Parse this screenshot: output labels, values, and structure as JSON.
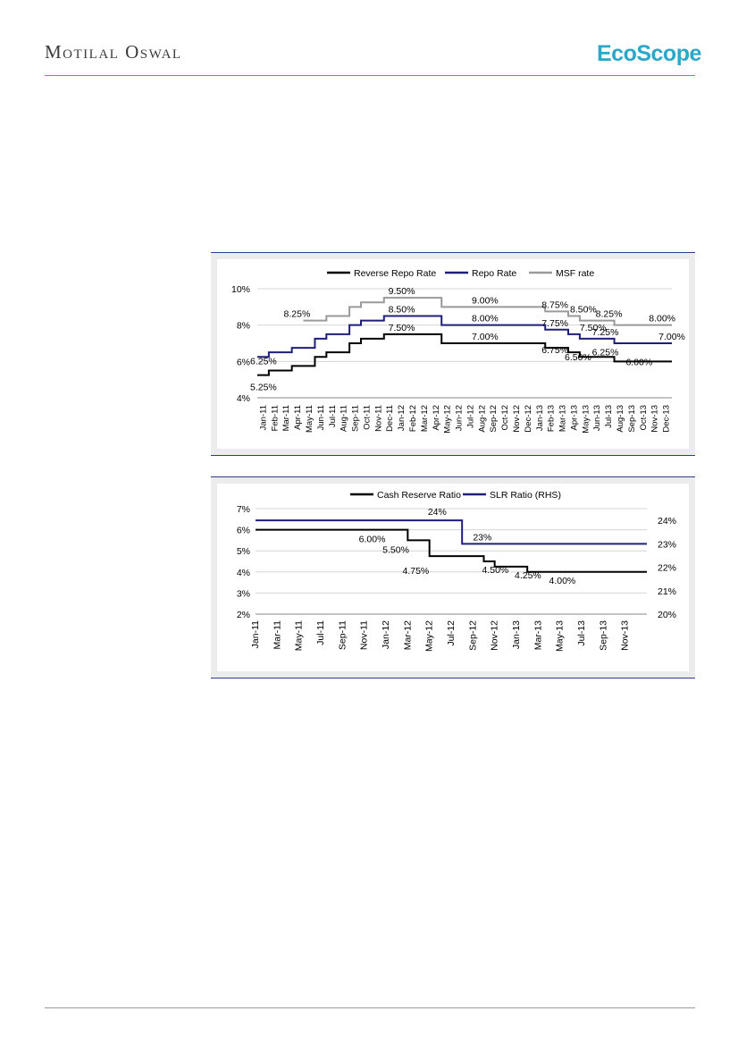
{
  "header": {
    "brand": "Motilal Oswal",
    "logo_text": "EcoScope",
    "accent_color": "#2aa7c9"
  },
  "chart_data": [
    {
      "type": "line",
      "step": true,
      "legend_position": "top",
      "grid": true,
      "ylim": [
        4,
        10
      ],
      "yticks": [
        "4%",
        "6%",
        "8%",
        "10%"
      ],
      "x": [
        "Jan-11",
        "Feb-11",
        "Mar-11",
        "Apr-11",
        "May-11",
        "Jun-11",
        "Jul-11",
        "Aug-11",
        "Sep-11",
        "Oct-11",
        "Nov-11",
        "Dec-11",
        "Jan-12",
        "Feb-12",
        "Mar-12",
        "Apr-12",
        "May-12",
        "Jun-12",
        "Jul-12",
        "Aug-12",
        "Sep-12",
        "Oct-12",
        "Nov-12",
        "Dec-12",
        "Jan-13",
        "Feb-13",
        "Mar-13",
        "Apr-13",
        "May-13",
        "Jun-13",
        "Jul-13",
        "Aug-13",
        "Sep-13",
        "Oct-13",
        "Nov-13",
        "Dec-13"
      ],
      "series": [
        {
          "name": "Reverse Repo Rate",
          "color": "#000000",
          "values": [
            5.25,
            5.5,
            5.5,
            5.75,
            5.75,
            6.25,
            6.5,
            6.5,
            7.0,
            7.25,
            7.25,
            7.5,
            7.5,
            7.5,
            7.5,
            7.5,
            7.0,
            7.0,
            7.0,
            7.0,
            7.0,
            7.0,
            7.0,
            7.0,
            7.0,
            6.75,
            6.75,
            6.5,
            6.25,
            6.25,
            6.25,
            6.0,
            6.0,
            6.0,
            6.0,
            6.0
          ]
        },
        {
          "name": "Repo Rate",
          "color": "#1f1f7a",
          "values": [
            6.25,
            6.5,
            6.5,
            6.75,
            6.75,
            7.25,
            7.5,
            7.5,
            8.0,
            8.25,
            8.25,
            8.5,
            8.5,
            8.5,
            8.5,
            8.5,
            8.0,
            8.0,
            8.0,
            8.0,
            8.0,
            8.0,
            8.0,
            8.0,
            8.0,
            7.75,
            7.75,
            7.5,
            7.25,
            7.25,
            7.25,
            7.0,
            7.0,
            7.0,
            7.0,
            7.0
          ]
        },
        {
          "name": "MSF rate",
          "color": "#9a9a9a",
          "values": [
            null,
            null,
            null,
            null,
            8.25,
            8.25,
            8.5,
            8.5,
            9.0,
            9.25,
            9.25,
            9.5,
            9.5,
            9.5,
            9.5,
            9.5,
            9.0,
            9.0,
            9.0,
            9.0,
            9.0,
            9.0,
            9.0,
            9.0,
            9.0,
            8.75,
            8.75,
            8.5,
            8.25,
            8.25,
            8.25,
            8.0,
            8.0,
            8.0,
            8.0,
            8.0
          ]
        }
      ],
      "annotations": [
        {
          "text": "5.25%",
          "x": "Jan-11",
          "value": 5.25
        },
        {
          "text": "6.25%",
          "x": "Jan-11",
          "value": 6.25
        },
        {
          "text": "8.25%",
          "x": "May-11",
          "value": 8.25
        },
        {
          "text": "9.50%",
          "x": "Jan-12",
          "value": 9.5
        },
        {
          "text": "8.50%",
          "x": "Jan-12",
          "value": 8.5
        },
        {
          "text": "7.50%",
          "x": "Jan-12",
          "value": 7.5
        },
        {
          "text": "9.00%",
          "x": "Jul-12",
          "value": 9.0
        },
        {
          "text": "8.00%",
          "x": "Jul-12",
          "value": 8.0
        },
        {
          "text": "7.00%",
          "x": "Jul-12",
          "value": 7.0
        },
        {
          "text": "8.75%",
          "x": "Feb-13",
          "value": 8.75
        },
        {
          "text": "7.75%",
          "x": "Feb-13",
          "value": 7.75
        },
        {
          "text": "6.75%",
          "x": "Feb-13",
          "value": 6.75
        },
        {
          "text": "8.50%",
          "x": "Apr-13",
          "value": 8.5
        },
        {
          "text": "7.50%",
          "x": "May-13",
          "value": 7.5
        },
        {
          "text": "6.50%",
          "x": "Apr-13",
          "value": 6.5
        },
        {
          "text": "8.25%",
          "x": "Jul-13",
          "value": 8.25
        },
        {
          "text": "7.25%",
          "x": "Jul-13",
          "value": 7.25
        },
        {
          "text": "6.25%",
          "x": "Jul-13",
          "value": 6.25
        },
        {
          "text": "6.00%",
          "x": "Sep-13",
          "value": 6.0
        },
        {
          "text": "8.00%",
          "x": "Nov-13",
          "value": 8.0
        },
        {
          "text": "7.00%",
          "x": "Dec-13",
          "value": 7.0
        }
      ]
    },
    {
      "type": "line",
      "step": true,
      "legend_position": "top",
      "grid": true,
      "ylim": [
        2,
        7
      ],
      "yticks": [
        "2%",
        "3%",
        "4%",
        "5%",
        "6%",
        "7%"
      ],
      "y2lim": [
        20,
        24.5
      ],
      "y2ticks": [
        "20%",
        "21%",
        "22%",
        "23%",
        "24%"
      ],
      "x": [
        "Jan-11",
        "Mar-11",
        "May-11",
        "Jul-11",
        "Sep-11",
        "Nov-11",
        "Jan-12",
        "Mar-12",
        "May-12",
        "Jul-12",
        "Sep-12",
        "Nov-12",
        "Jan-13",
        "Mar-13",
        "May-13",
        "Jul-13",
        "Sep-13",
        "Nov-13"
      ],
      "series": [
        {
          "name": "Cash Reserve Ratio",
          "axis": "left",
          "color": "#000000",
          "points": [
            {
              "x": 0,
              "value": 6.0
            },
            {
              "x": 14,
              "value": 5.5
            },
            {
              "x": 16,
              "value": 4.75
            },
            {
              "x": 21,
              "value": 4.5
            },
            {
              "x": 22,
              "value": 4.25
            },
            {
              "x": 25,
              "value": 4.0
            },
            {
              "x": 35,
              "value": 4.0
            }
          ]
        },
        {
          "name": "SLR Ratio (RHS)",
          "axis": "right",
          "color": "#1f1f7a",
          "points": [
            {
              "x": 0,
              "value": 24
            },
            {
              "x": 19,
              "value": 23
            },
            {
              "x": 35,
              "value": 23
            }
          ]
        }
      ],
      "annotations": [
        {
          "text": "6.00%",
          "x": "Nov-11",
          "value": 6.0
        },
        {
          "text": "5.50%",
          "x": "Feb-12",
          "value": 5.5
        },
        {
          "text": "4.75%",
          "x": "Apr-12",
          "value": 4.75
        },
        {
          "text": "4.50%",
          "x": "Oct-12",
          "value": 4.5
        },
        {
          "text": "4.25%",
          "x": "Jan-13",
          "value": 4.25
        },
        {
          "text": "4.00%",
          "x": "Apr-13",
          "value": 4.0
        },
        {
          "text": "24%",
          "x": "Jun-12",
          "value": 24
        },
        {
          "text": "23%",
          "x": "Sep-12",
          "value": 23
        }
      ]
    }
  ]
}
